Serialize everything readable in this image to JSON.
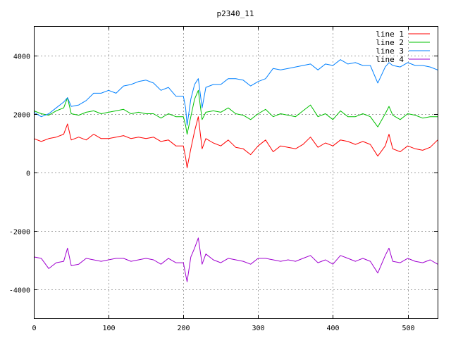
{
  "chart_data": {
    "type": "line",
    "title": "p2340_11",
    "xlabel": "",
    "ylabel": "",
    "xlim": [
      0,
      540
    ],
    "ylim": [
      -5000,
      5000
    ],
    "x_ticks": [
      0,
      100,
      200,
      300,
      400,
      500
    ],
    "y_ticks": [
      -4000,
      -2000,
      0,
      2000,
      4000
    ],
    "grid": true,
    "legend_position": "top-right",
    "x": [
      0,
      10,
      20,
      30,
      40,
      45,
      50,
      60,
      70,
      80,
      90,
      100,
      110,
      120,
      130,
      140,
      150,
      160,
      170,
      180,
      190,
      200,
      203,
      205,
      210,
      215,
      220,
      225,
      230,
      240,
      250,
      260,
      270,
      280,
      290,
      300,
      310,
      320,
      330,
      340,
      350,
      360,
      370,
      380,
      390,
      400,
      410,
      420,
      430,
      440,
      450,
      460,
      470,
      475,
      480,
      490,
      500,
      510,
      520,
      530,
      540
    ],
    "series": [
      {
        "name": "line 1",
        "color": "#ff0000",
        "values": [
          1150,
          1050,
          1150,
          1200,
          1300,
          1650,
          1100,
          1200,
          1100,
          1300,
          1150,
          1150,
          1200,
          1250,
          1150,
          1200,
          1150,
          1200,
          1050,
          1100,
          900,
          900,
          500,
          150,
          800,
          1400,
          1900,
          800,
          1150,
          1000,
          900,
          1100,
          850,
          800,
          600,
          900,
          1100,
          700,
          900,
          850,
          800,
          950,
          1200,
          850,
          1000,
          900,
          1100,
          1050,
          950,
          1050,
          950,
          550,
          900,
          1300,
          800,
          700,
          900,
          800,
          750,
          850,
          1100
        ]
      },
      {
        "name": "line 2",
        "color": "#00c000",
        "values": [
          2100,
          2000,
          1950,
          2100,
          2200,
          2550,
          2000,
          1950,
          2050,
          2100,
          2000,
          2050,
          2100,
          2150,
          2000,
          2050,
          2000,
          2000,
          1850,
          2000,
          1900,
          1900,
          1600,
          1300,
          1900,
          2500,
          2800,
          1800,
          2050,
          2100,
          2050,
          2200,
          2000,
          1950,
          1800,
          2000,
          2150,
          1900,
          2000,
          1950,
          1900,
          2100,
          2300,
          1900,
          2000,
          1800,
          2100,
          1900,
          1900,
          2000,
          1900,
          1550,
          2000,
          2250,
          1950,
          1800,
          2000,
          1950,
          1850,
          1900,
          1900
        ]
      },
      {
        "name": "line 3",
        "color": "#0080ff",
        "values": [
          2050,
          1900,
          2000,
          2200,
          2400,
          2550,
          2250,
          2300,
          2450,
          2700,
          2700,
          2800,
          2700,
          2950,
          3000,
          3100,
          3150,
          3050,
          2800,
          2900,
          2600,
          2600,
          2200,
          1600,
          2500,
          3000,
          3200,
          2200,
          2900,
          3000,
          3000,
          3200,
          3200,
          3150,
          2950,
          3100,
          3200,
          3550,
          3500,
          3550,
          3600,
          3650,
          3700,
          3500,
          3700,
          3650,
          3850,
          3700,
          3750,
          3650,
          3650,
          3050,
          3600,
          3750,
          3650,
          3600,
          3750,
          3650,
          3650,
          3600,
          3500
        ]
      },
      {
        "name": "line 4",
        "color": "#a000d0",
        "values": [
          -2900,
          -2950,
          -3300,
          -3100,
          -3050,
          -2600,
          -3200,
          -3150,
          -2950,
          -3000,
          -3050,
          -3000,
          -2950,
          -2950,
          -3050,
          -3000,
          -2950,
          -3000,
          -3150,
          -2950,
          -3100,
          -3100,
          -3500,
          -3750,
          -2900,
          -2600,
          -2250,
          -3150,
          -2800,
          -3000,
          -3100,
          -2950,
          -3000,
          -3050,
          -3150,
          -2950,
          -2950,
          -3000,
          -3050,
          -3000,
          -3050,
          -2950,
          -2850,
          -3100,
          -3000,
          -3150,
          -2850,
          -2950,
          -3050,
          -2950,
          -3050,
          -3450,
          -2850,
          -2600,
          -3050,
          -3100,
          -2950,
          -3050,
          -3100,
          -3000,
          -3150
        ]
      }
    ]
  }
}
